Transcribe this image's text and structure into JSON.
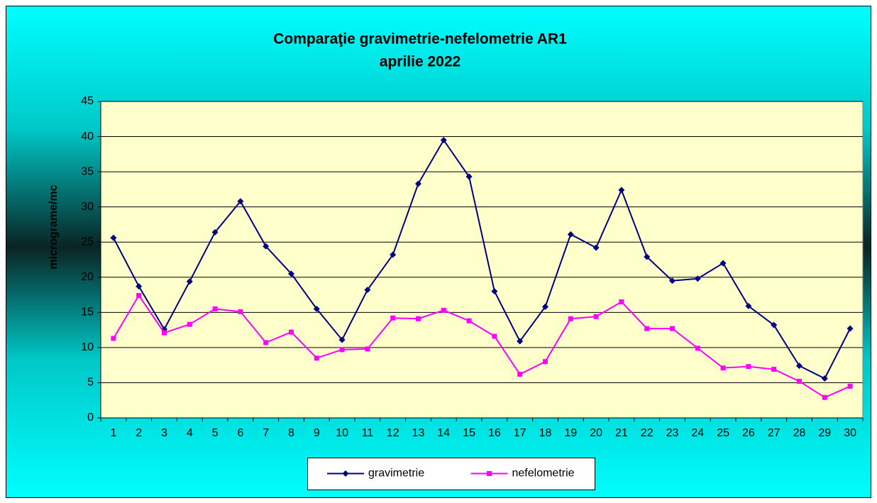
{
  "chart_data": {
    "type": "line",
    "title": "Comparaţie gravimetrie-nefelometrie AR1",
    "subtitle": "aprilie 2022",
    "y_label": "micrograme/mc",
    "categories": [
      "1",
      "2",
      "3",
      "4",
      "5",
      "6",
      "7",
      "8",
      "9",
      "10",
      "11",
      "12",
      "13",
      "14",
      "15",
      "16",
      "17",
      "18",
      "19",
      "20",
      "21",
      "22",
      "23",
      "24",
      "25",
      "26",
      "27",
      "28",
      "29",
      "30"
    ],
    "series": [
      {
        "name": "gravimetrie",
        "color": "#000080",
        "marker": "diamond",
        "values": [
          25.6,
          18.7,
          12.6,
          19.4,
          26.4,
          30.8,
          24.4,
          20.5,
          15.5,
          11.1,
          18.2,
          23.2,
          33.3,
          39.5,
          34.3,
          18.0,
          10.9,
          15.8,
          26.1,
          24.2,
          32.4,
          22.9,
          19.5,
          19.8,
          22.0,
          15.9,
          13.2,
          7.4,
          5.6,
          12.7
        ]
      },
      {
        "name": "nefelometrie",
        "color": "#ff00ff",
        "marker": "square",
        "values": [
          11.3,
          17.4,
          12.1,
          13.3,
          15.5,
          15.1,
          10.7,
          12.2,
          8.5,
          9.7,
          9.8,
          14.2,
          14.1,
          15.3,
          13.8,
          11.6,
          6.2,
          8.0,
          14.1,
          14.4,
          16.5,
          12.7,
          12.7,
          9.9,
          7.1,
          7.3,
          6.9,
          5.2,
          2.9,
          4.5
        ]
      }
    ],
    "ylim": [
      0,
      45
    ],
    "yticks": [
      0,
      5,
      10,
      15,
      20,
      25,
      30,
      35,
      40,
      45
    ],
    "grid": true,
    "legend": "bottom",
    "plot_color": "#ffffcc"
  }
}
